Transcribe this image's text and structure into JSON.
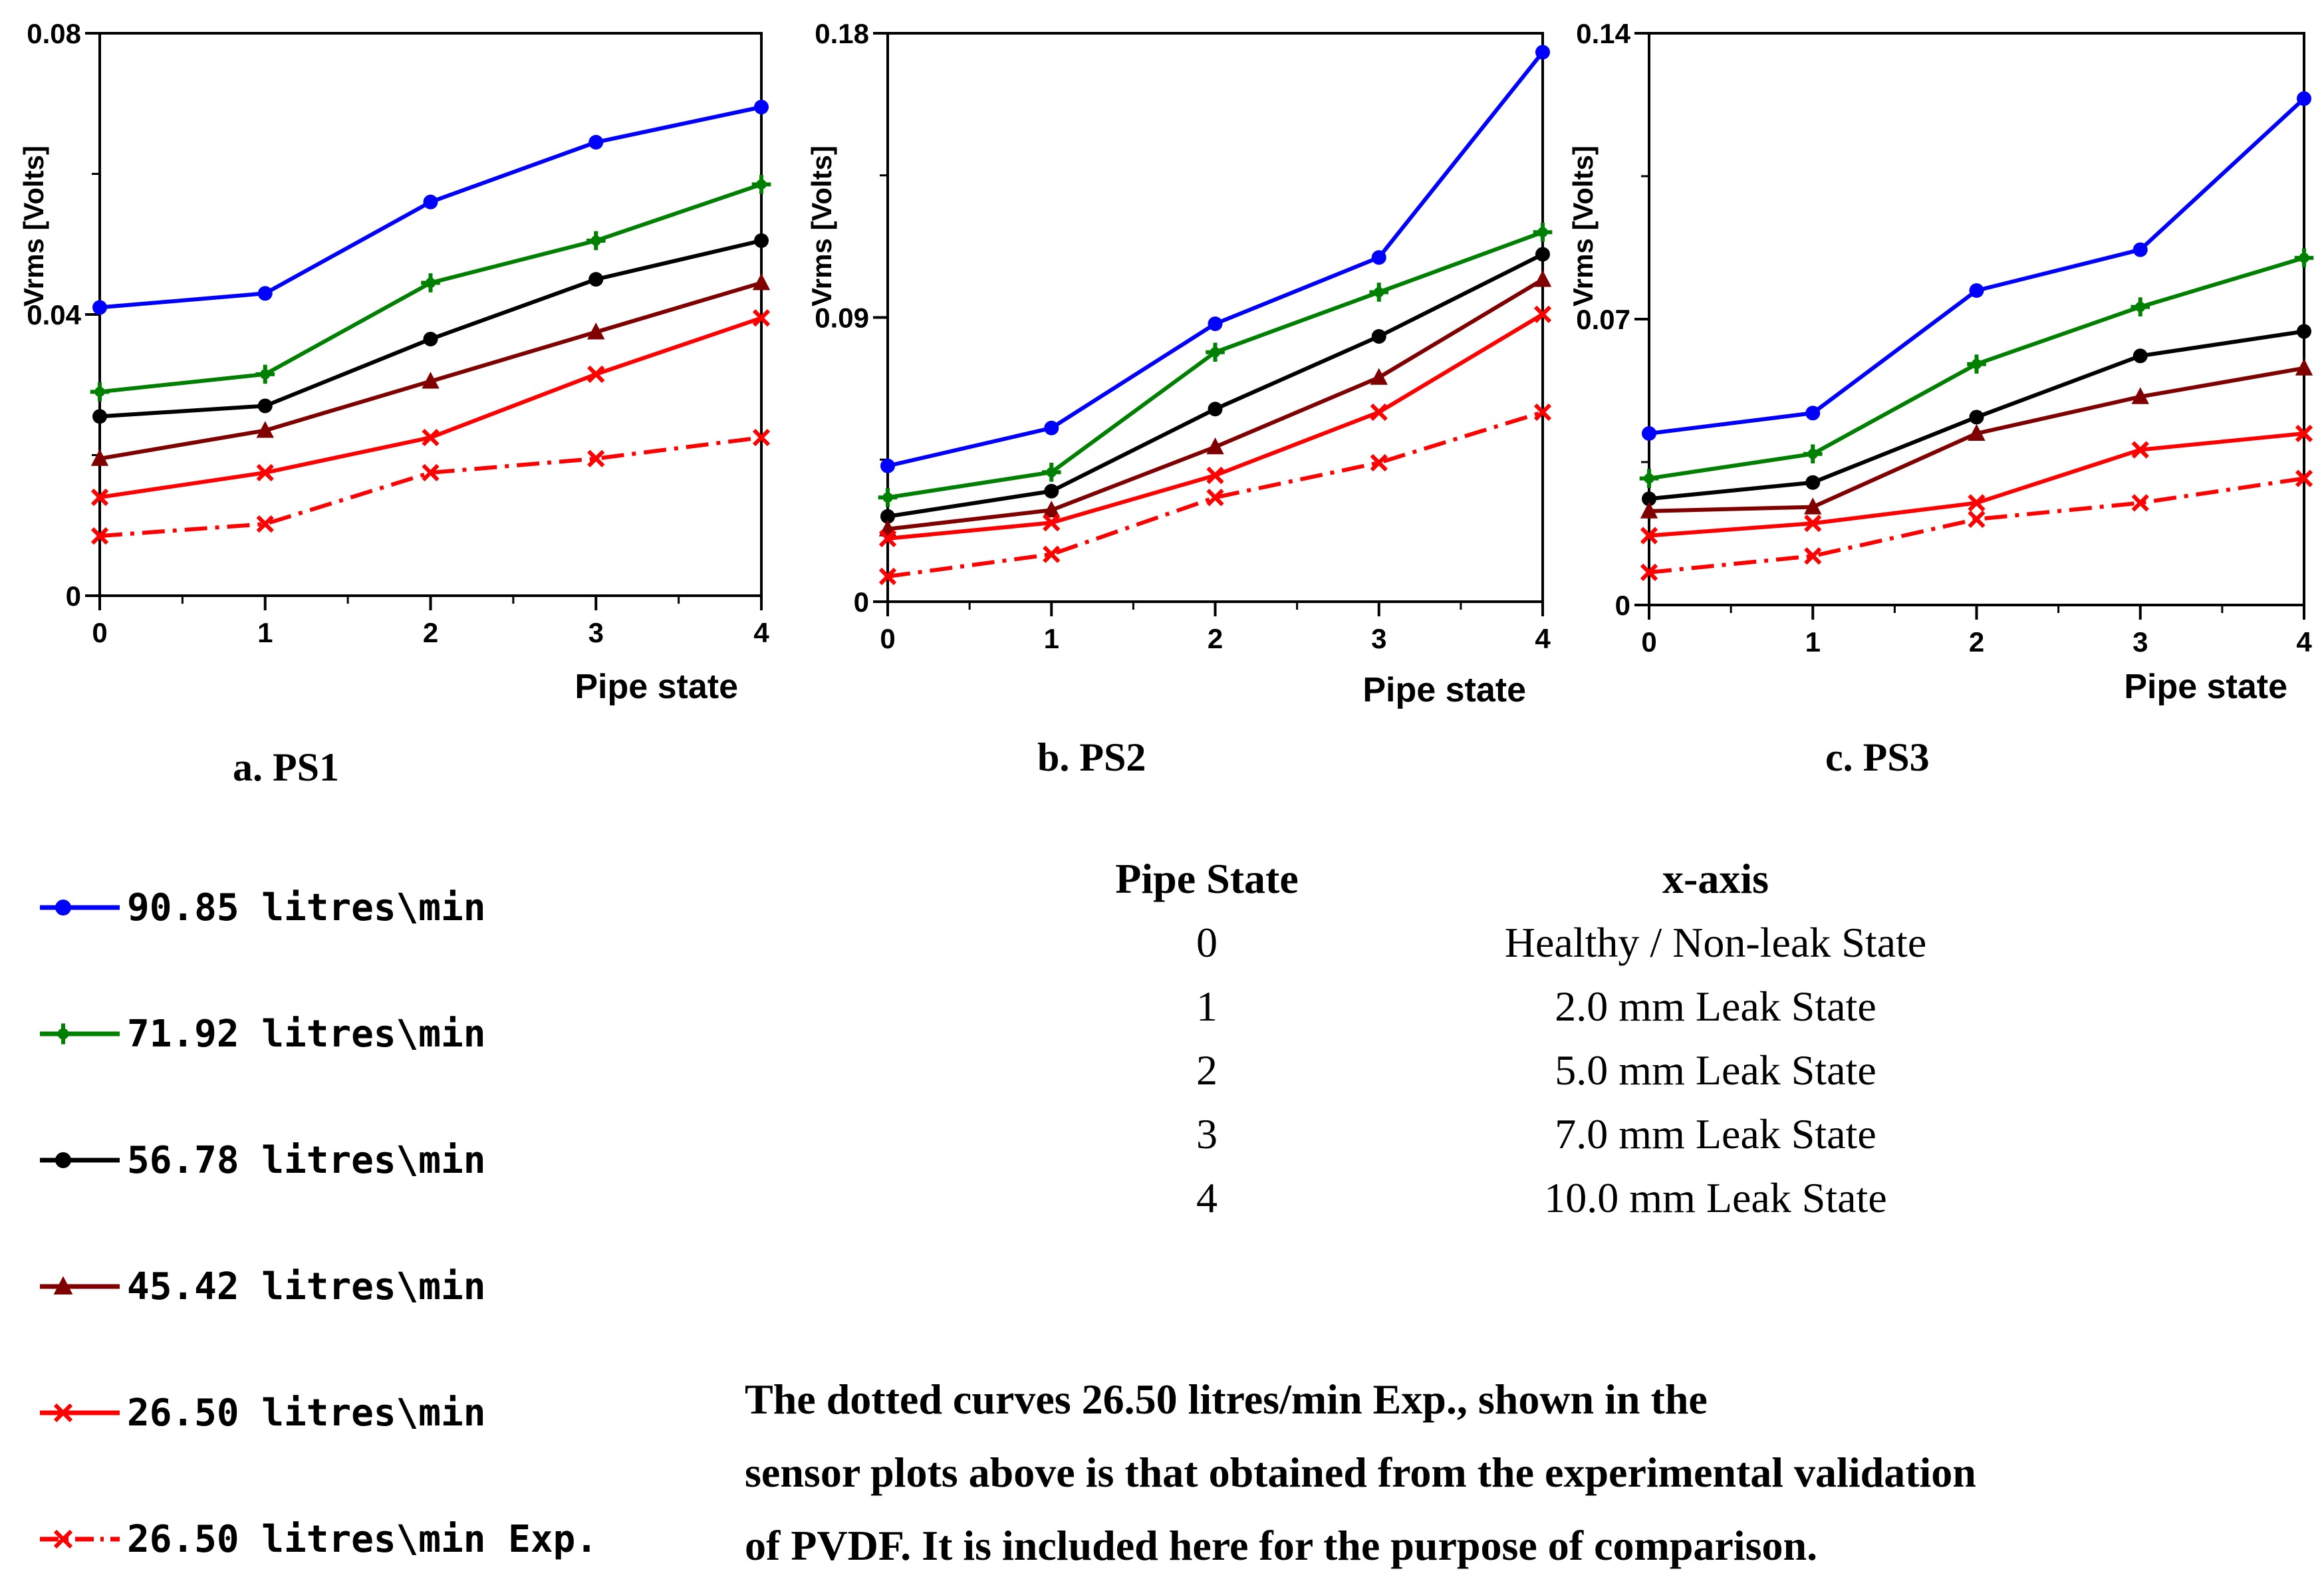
{
  "chart_data": [
    {
      "type": "line",
      "caption": "a. PS1",
      "xlabel": "Pipe state",
      "ylabel": "Vrms [Volts]",
      "x": [
        0,
        1,
        2,
        3,
        4
      ],
      "xticks": [
        "0",
        "1",
        "2",
        "3",
        "4"
      ],
      "ylim": [
        0,
        0.08
      ],
      "yticks": [
        "0",
        "0.04",
        "0.08"
      ],
      "series": [
        {
          "name": "90.85 litres\\min",
          "values": [
            0.041,
            0.043,
            0.056,
            0.0645,
            0.0695
          ]
        },
        {
          "name": "71.92 litres\\min",
          "values": [
            0.029,
            0.0315,
            0.0445,
            0.0505,
            0.0585
          ]
        },
        {
          "name": "56.78 litres\\min",
          "values": [
            0.0255,
            0.027,
            0.0365,
            0.045,
            0.0505
          ]
        },
        {
          "name": "45.42 litres\\min",
          "values": [
            0.0195,
            0.0235,
            0.0305,
            0.0375,
            0.0445
          ]
        },
        {
          "name": "26.50 litres\\min",
          "values": [
            0.014,
            0.0175,
            0.0225,
            0.0315,
            0.0395
          ]
        },
        {
          "name": "26.50 litres\\min Exp.",
          "values": [
            0.0085,
            0.0102,
            0.0175,
            0.0195,
            0.0225
          ]
        }
      ]
    },
    {
      "type": "line",
      "caption": "b. PS2",
      "xlabel": "Pipe state",
      "ylabel": "Vrms [Volts]",
      "x": [
        0,
        1,
        2,
        3,
        4
      ],
      "xticks": [
        "0",
        "1",
        "2",
        "3",
        "4"
      ],
      "ylim": [
        0,
        0.18
      ],
      "yticks": [
        "0",
        "0.09",
        "0.18"
      ],
      "series": [
        {
          "name": "90.85 litres\\min",
          "values": [
            0.043,
            0.055,
            0.088,
            0.109,
            0.174
          ]
        },
        {
          "name": "71.92 litres\\min",
          "values": [
            0.033,
            0.041,
            0.079,
            0.098,
            0.117
          ]
        },
        {
          "name": "56.78 litres\\min",
          "values": [
            0.027,
            0.035,
            0.061,
            0.084,
            0.11
          ]
        },
        {
          "name": "45.42 litres\\min",
          "values": [
            0.023,
            0.029,
            0.049,
            0.071,
            0.102
          ]
        },
        {
          "name": "26.50 litres\\min",
          "values": [
            0.02,
            0.025,
            0.04,
            0.06,
            0.091
          ]
        },
        {
          "name": "26.50 litres\\min Exp.",
          "values": [
            0.008,
            0.015,
            0.033,
            0.044,
            0.06
          ]
        }
      ]
    },
    {
      "type": "line",
      "caption": "c. PS3",
      "xlabel": "Pipe state",
      "ylabel": "Vrms [Volts]",
      "x": [
        0,
        1,
        2,
        3,
        4
      ],
      "xticks": [
        "0",
        "1",
        "2",
        "3",
        "4"
      ],
      "ylim": [
        0,
        0.14
      ],
      "yticks": [
        "0",
        "0.07",
        "0.14"
      ],
      "series": [
        {
          "name": "90.85 litres\\min",
          "values": [
            0.042,
            0.047,
            0.077,
            0.087,
            0.124
          ]
        },
        {
          "name": "71.92 litres\\min",
          "values": [
            0.031,
            0.037,
            0.059,
            0.073,
            0.085
          ]
        },
        {
          "name": "56.78 litres\\min",
          "values": [
            0.026,
            0.03,
            0.046,
            0.061,
            0.067
          ]
        },
        {
          "name": "45.42 litres\\min",
          "values": [
            0.023,
            0.024,
            0.042,
            0.051,
            0.058
          ]
        },
        {
          "name": "26.50 litres\\min",
          "values": [
            0.017,
            0.02,
            0.025,
            0.038,
            0.042
          ]
        },
        {
          "name": "26.50 litres\\min Exp.",
          "values": [
            0.008,
            0.012,
            0.021,
            0.025,
            0.031
          ]
        }
      ]
    }
  ],
  "series_styles": [
    {
      "color": "#0000ff",
      "marker": "circle",
      "dashed": false
    },
    {
      "color": "#008000",
      "marker": "plus",
      "dashed": false
    },
    {
      "color": "#000000",
      "marker": "circle",
      "dashed": false
    },
    {
      "color": "#800000",
      "marker": "triangle",
      "dashed": false
    },
    {
      "color": "#ff0000",
      "marker": "x",
      "dashed": false
    },
    {
      "color": "#ff0000",
      "marker": "x",
      "dashed": true
    }
  ],
  "legend": [
    {
      "label": "90.85 litres\\min"
    },
    {
      "label": "71.92 litres\\min"
    },
    {
      "label": "56.78 litres\\min"
    },
    {
      "label": "45.42 litres\\min"
    },
    {
      "label": "26.50 litres\\min"
    },
    {
      "label": "26.50 litres\\min Exp."
    }
  ],
  "state_table": {
    "headers": [
      "Pipe State",
      "x-axis"
    ],
    "rows": [
      {
        "state": "0",
        "desc": "Healthy / Non-leak State"
      },
      {
        "state": "1",
        "desc": "2.0 mm Leak State"
      },
      {
        "state": "2",
        "desc": "5.0 mm Leak State"
      },
      {
        "state": "3",
        "desc": "7.0 mm Leak State"
      },
      {
        "state": "4",
        "desc": "10.0 mm Leak State"
      }
    ]
  },
  "note": {
    "lines": [
      "The dotted curves 26.50 litres/min Exp., shown in the",
      "sensor plots above is that obtained from the experimental validation",
      "of PVDF. It is included here for the purpose of comparison."
    ]
  }
}
